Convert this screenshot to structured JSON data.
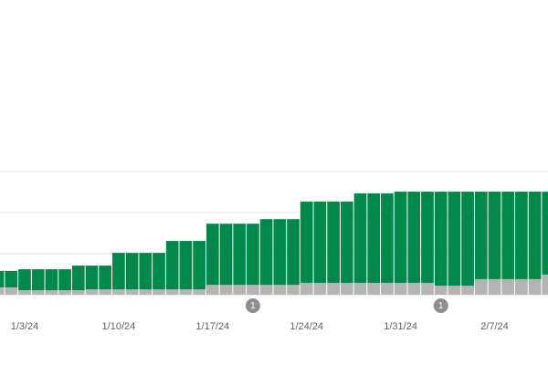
{
  "chart_data": {
    "type": "stacked-bar",
    "categories": [
      null,
      null,
      "1/3/24",
      null,
      null,
      null,
      null,
      null,
      null,
      "1/10/24",
      null,
      null,
      null,
      null,
      null,
      null,
      "1/17/24",
      null,
      null,
      null,
      null,
      null,
      null,
      "1/24/24",
      null,
      null,
      null,
      null,
      null,
      null,
      "1/31/24",
      null,
      null,
      null,
      null,
      null,
      null,
      "2/7/24",
      null,
      null,
      null,
      null
    ],
    "series": [
      {
        "color": "#b4b4b4",
        "values": [
          0.18,
          0.18,
          0.11,
          0.11,
          0.11,
          0.11,
          0.11,
          0.13,
          0.13,
          0.13,
          0.13,
          0.13,
          0.13,
          0.13,
          0.13,
          0.13,
          0.24,
          0.24,
          0.24,
          0.24,
          0.24,
          0.24,
          0.24,
          0.29,
          0.29,
          0.29,
          0.29,
          0.29,
          0.29,
          0.29,
          0.29,
          0.29,
          0.29,
          0.22,
          0.22,
          0.22,
          0.38,
          0.38,
          0.38,
          0.38,
          0.38,
          0.49
        ]
      },
      {
        "color": "#00874a",
        "values": [
          0.4,
          0.4,
          0.51,
          0.51,
          0.51,
          0.51,
          0.6,
          0.58,
          0.58,
          0.89,
          0.89,
          0.89,
          0.89,
          1.18,
          1.18,
          1.18,
          1.49,
          1.49,
          1.49,
          1.49,
          1.6,
          1.6,
          1.6,
          1.98,
          1.98,
          1.98,
          1.98,
          2.18,
          2.18,
          2.18,
          2.22,
          2.22,
          2.22,
          2.29,
          2.29,
          2.29,
          2.13,
          2.13,
          2.13,
          2.13,
          2.13,
          2.02
        ]
      }
    ],
    "annotations": [
      {
        "category_index": 19,
        "text": "1"
      },
      {
        "category_index": 33,
        "text": "1"
      }
    ],
    "ylim": [
      0,
      3
    ],
    "yticks": [
      0,
      1,
      2,
      3
    ],
    "grid": true
  }
}
